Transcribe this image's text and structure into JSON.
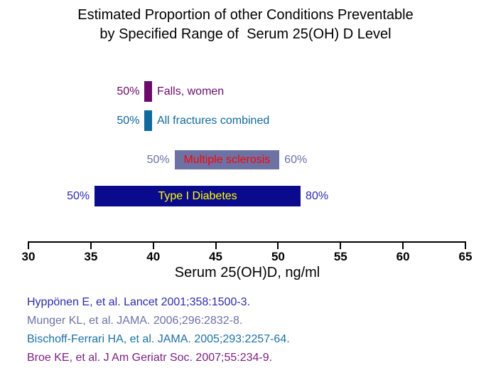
{
  "title": {
    "line1": "Estimated Proportion of other Conditions Preventable",
    "line2": "by Specified Range of  Serum 25(OH) D Level"
  },
  "chart_data": {
    "type": "bar",
    "orientation": "horizontal",
    "title": "Estimated Proportion of other Conditions Preventable by Specified Range of Serum 25(OH) D Level",
    "xlabel": "Serum 25(OH)D, ng/ml",
    "xlim": [
      30,
      65
    ],
    "xticks": [
      30,
      35,
      40,
      45,
      50,
      55,
      60,
      65
    ],
    "grid": false,
    "bars": [
      {
        "condition": "Falls, women",
        "range_ngml": [
          39.3,
          39.9
        ],
        "left_label": "50%",
        "right_label": "Falls, women",
        "inner_label": "",
        "bar_color": "#6B0A6B",
        "label_color": "#6B0A6B",
        "inner_color": ""
      },
      {
        "condition": "All fractures combined",
        "range_ngml": [
          39.3,
          39.9
        ],
        "left_label": "50%",
        "right_label": "All fractures combined",
        "inner_label": "",
        "bar_color": "#10699C",
        "label_color": "#10699C",
        "inner_color": ""
      },
      {
        "condition": "Multiple sclerosis",
        "range_ngml": [
          41.7,
          50.1
        ],
        "left_label": "50%",
        "right_label": "60%",
        "inner_label": "Multiple sclerosis",
        "bar_color": "#6C72A4",
        "label_color": "#6C72A4",
        "inner_color": "#FF0000"
      },
      {
        "condition": "Type I Diabetes",
        "range_ngml": [
          35.3,
          51.8
        ],
        "left_label": "50%",
        "right_label": "80%",
        "inner_label": "Type I Diabetes",
        "bar_color": "#0A0A8C",
        "label_color": "#2A2AB0",
        "inner_color": "#FFFF00"
      }
    ]
  },
  "references": [
    {
      "text": "Hyppönen E, et al. Lancet 2001;358:1500-3.",
      "color": "#2B2BA6"
    },
    {
      "text": "Munger KL, et al. JAMA. 2006;296:2832-8.",
      "color": "#6C72A6"
    },
    {
      "text": "Bischoff-Ferrari HA, et al. JAMA. 2005;293:2257-64.",
      "color": "#1C70A4"
    },
    {
      "text": "Broe KE, et al. J Am Geriatr Soc. 2007;55:234-9.",
      "color": "#7B2180"
    }
  ]
}
